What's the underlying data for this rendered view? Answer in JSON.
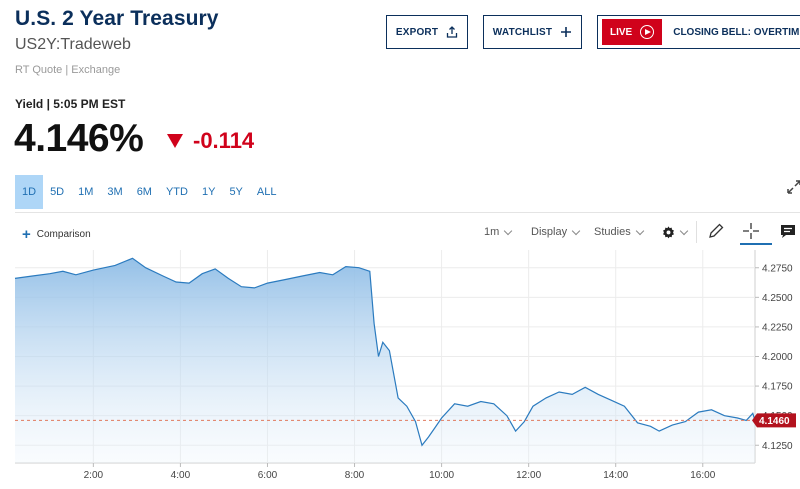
{
  "header": {
    "title": "U.S. 2 Year Treasury",
    "symbol": "US2Y:Tradeweb",
    "quote_source": "RT Quote | Exchange"
  },
  "actions": {
    "export_label": "EXPORT",
    "watchlist_label": "WATCHLIST",
    "live_label": "LIVE",
    "live_program": "CLOSING BELL: OVERTIME"
  },
  "quote": {
    "yield_label": "Yield | 5:05 PM EST",
    "last": "4.146%",
    "change": "-0.114",
    "change_color": "#d0021b"
  },
  "ranges": [
    "1D",
    "5D",
    "1M",
    "3M",
    "6M",
    "YTD",
    "1Y",
    "5Y",
    "ALL"
  ],
  "active_range": "1D",
  "chart_toolbar": {
    "comparison_label": "Comparison",
    "interval_label": "1m",
    "display_label": "Display",
    "studies_label": "Studies"
  },
  "icons": [
    "upload-icon",
    "plus-icon",
    "play-icon",
    "expand-icon",
    "gear-icon",
    "pencil-icon",
    "crosshair-icon",
    "comment-icon"
  ],
  "colors": {
    "brand": "#0b2f5b",
    "accent": "#1f6fb2",
    "negative": "#d0021b",
    "line": "#2b7bbf"
  },
  "chart_data": {
    "type": "area",
    "x_unit": "hour",
    "xlim": [
      0.2,
      17.2
    ],
    "ylim": [
      4.11,
      4.29
    ],
    "x_tick_labels": [
      "2:00",
      "4:00",
      "6:00",
      "8:00",
      "10:00",
      "12:00",
      "14:00",
      "16:00"
    ],
    "x_ticks": [
      2,
      4,
      6,
      8,
      10,
      12,
      14,
      16
    ],
    "y_ticks": [
      4.125,
      4.15,
      4.175,
      4.2,
      4.225,
      4.25,
      4.275
    ],
    "y_tick_labels": [
      "4.1250",
      "4.1500",
      "4.1750",
      "4.2000",
      "4.2250",
      "4.2500",
      "4.2750"
    ],
    "last_value": 4.146,
    "last_value_label": "4.1460",
    "grid": true,
    "points": [
      [
        0.2,
        4.266
      ],
      [
        0.6,
        4.268
      ],
      [
        1.0,
        4.27
      ],
      [
        1.3,
        4.272
      ],
      [
        1.6,
        4.269
      ],
      [
        2.0,
        4.273
      ],
      [
        2.5,
        4.277
      ],
      [
        2.9,
        4.283
      ],
      [
        3.2,
        4.275
      ],
      [
        3.6,
        4.268
      ],
      [
        3.9,
        4.263
      ],
      [
        4.2,
        4.262
      ],
      [
        4.5,
        4.27
      ],
      [
        4.8,
        4.274
      ],
      [
        5.1,
        4.266
      ],
      [
        5.4,
        4.259
      ],
      [
        5.7,
        4.258
      ],
      [
        6.0,
        4.262
      ],
      [
        6.4,
        4.265
      ],
      [
        6.8,
        4.268
      ],
      [
        7.2,
        4.271
      ],
      [
        7.5,
        4.269
      ],
      [
        7.8,
        4.276
      ],
      [
        8.1,
        4.275
      ],
      [
        8.35,
        4.272
      ],
      [
        8.45,
        4.228
      ],
      [
        8.55,
        4.2
      ],
      [
        8.65,
        4.212
      ],
      [
        8.8,
        4.205
      ],
      [
        9.0,
        4.165
      ],
      [
        9.2,
        4.158
      ],
      [
        9.4,
        4.145
      ],
      [
        9.55,
        4.125
      ],
      [
        9.7,
        4.132
      ],
      [
        9.85,
        4.14
      ],
      [
        10.0,
        4.148
      ],
      [
        10.3,
        4.16
      ],
      [
        10.6,
        4.158
      ],
      [
        10.9,
        4.162
      ],
      [
        11.2,
        4.16
      ],
      [
        11.5,
        4.15
      ],
      [
        11.7,
        4.137
      ],
      [
        11.9,
        4.145
      ],
      [
        12.1,
        4.158
      ],
      [
        12.4,
        4.165
      ],
      [
        12.7,
        4.17
      ],
      [
        13.0,
        4.168
      ],
      [
        13.3,
        4.174
      ],
      [
        13.6,
        4.168
      ],
      [
        13.9,
        4.163
      ],
      [
        14.2,
        4.158
      ],
      [
        14.5,
        4.144
      ],
      [
        14.8,
        4.141
      ],
      [
        15.0,
        4.137
      ],
      [
        15.3,
        4.142
      ],
      [
        15.6,
        4.145
      ],
      [
        15.9,
        4.153
      ],
      [
        16.2,
        4.155
      ],
      [
        16.5,
        4.15
      ],
      [
        16.8,
        4.148
      ],
      [
        17.0,
        4.146
      ],
      [
        17.15,
        4.152
      ],
      [
        17.2,
        4.146
      ]
    ]
  }
}
